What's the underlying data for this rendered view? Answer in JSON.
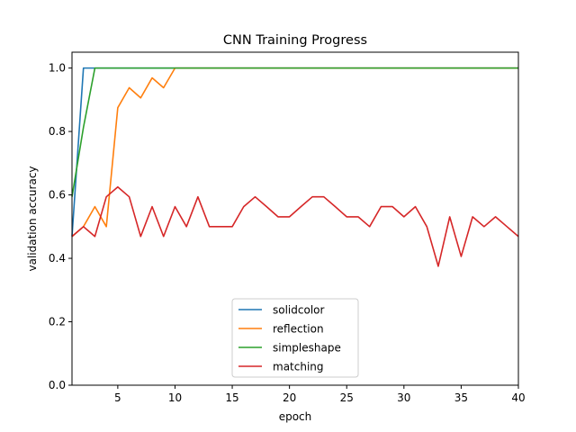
{
  "chart_data": {
    "type": "line",
    "title": "CNN Training Progress",
    "xlabel": "epoch",
    "ylabel": "validation accuracy",
    "xlim": [
      1,
      40
    ],
    "ylim": [
      0.0,
      1.05
    ],
    "xticks": [
      5,
      10,
      15,
      20,
      25,
      30,
      35,
      40
    ],
    "xtick_labels": [
      "5",
      "10",
      "15",
      "20",
      "25",
      "30",
      "35",
      "40"
    ],
    "yticks": [
      0.0,
      0.2,
      0.4,
      0.6,
      0.8,
      1.0
    ],
    "ytick_labels": [
      "0.0",
      "0.2",
      "0.4",
      "0.6",
      "0.8",
      "1.0"
    ],
    "grid": false,
    "legend_position": "bottom-center",
    "x": [
      1,
      2,
      3,
      4,
      5,
      6,
      7,
      8,
      9,
      10,
      11,
      12,
      13,
      14,
      15,
      16,
      17,
      18,
      19,
      20,
      21,
      22,
      23,
      24,
      25,
      26,
      27,
      28,
      29,
      30,
      31,
      32,
      33,
      34,
      35,
      36,
      37,
      38,
      39,
      40
    ],
    "series": [
      {
        "name": "solidcolor",
        "color": "#1f77b4",
        "values": [
          0.469,
          1.0,
          1.0,
          1.0,
          1.0,
          1.0,
          1.0,
          1.0,
          1.0,
          1.0,
          1.0,
          1.0,
          1.0,
          1.0,
          1.0,
          1.0,
          1.0,
          1.0,
          1.0,
          1.0,
          1.0,
          1.0,
          1.0,
          1.0,
          1.0,
          1.0,
          1.0,
          1.0,
          1.0,
          1.0,
          1.0,
          1.0,
          1.0,
          1.0,
          1.0,
          1.0,
          1.0,
          1.0,
          1.0,
          1.0
        ]
      },
      {
        "name": "reflection",
        "color": "#ff7f0e",
        "values": [
          0.469,
          0.5,
          0.563,
          0.5,
          0.875,
          0.938,
          0.906,
          0.969,
          0.938,
          1.0,
          1.0,
          1.0,
          1.0,
          1.0,
          1.0,
          1.0,
          1.0,
          1.0,
          1.0,
          1.0,
          1.0,
          1.0,
          1.0,
          1.0,
          1.0,
          1.0,
          1.0,
          1.0,
          1.0,
          1.0,
          1.0,
          1.0,
          1.0,
          1.0,
          1.0,
          1.0,
          1.0,
          1.0,
          1.0,
          1.0
        ]
      },
      {
        "name": "simpleshape",
        "color": "#2ca02c",
        "values": [
          0.594,
          0.813,
          1.0,
          1.0,
          1.0,
          1.0,
          1.0,
          1.0,
          1.0,
          1.0,
          1.0,
          1.0,
          1.0,
          1.0,
          1.0,
          1.0,
          1.0,
          1.0,
          1.0,
          1.0,
          1.0,
          1.0,
          1.0,
          1.0,
          1.0,
          1.0,
          1.0,
          1.0,
          1.0,
          1.0,
          1.0,
          1.0,
          1.0,
          1.0,
          1.0,
          1.0,
          1.0,
          1.0,
          1.0,
          1.0
        ]
      },
      {
        "name": "matching",
        "color": "#d62728",
        "values": [
          0.469,
          0.5,
          0.469,
          0.594,
          0.625,
          0.594,
          0.469,
          0.563,
          0.469,
          0.563,
          0.5,
          0.594,
          0.5,
          0.5,
          0.5,
          0.563,
          0.594,
          0.563,
          0.531,
          0.531,
          0.563,
          0.594,
          0.594,
          0.563,
          0.531,
          0.531,
          0.5,
          0.563,
          0.563,
          0.531,
          0.563,
          0.5,
          0.375,
          0.531,
          0.406,
          0.531,
          0.5,
          0.531,
          0.5,
          0.469
        ]
      }
    ]
  }
}
